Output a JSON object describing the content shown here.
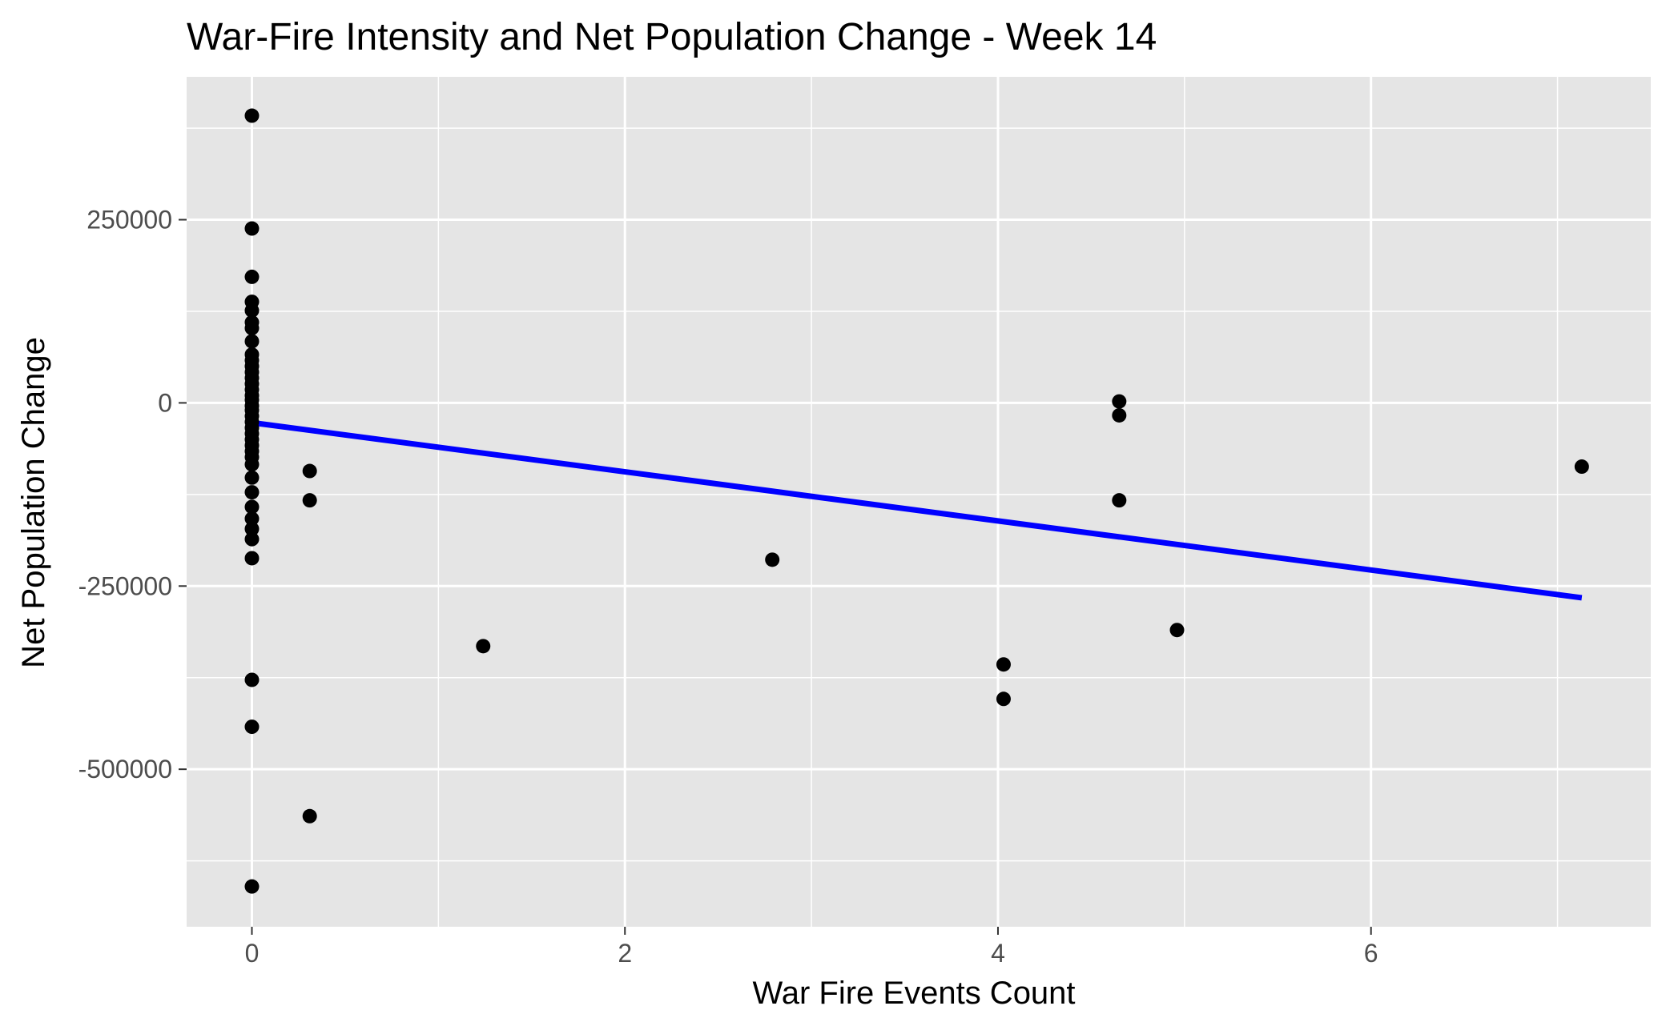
{
  "chart_data": {
    "type": "scatter",
    "title": "War-Fire Intensity and Net Population Change - Week 14",
    "xlabel": "War Fire Events Count",
    "ylabel": "Net Population Change",
    "xlim": [
      -0.35,
      7.5
    ],
    "ylim": [
      -715000,
      445000
    ],
    "x_ticks": [
      0,
      2,
      4,
      6
    ],
    "x_tick_labels": [
      "0",
      "2",
      "4",
      "6"
    ],
    "x_minor_ticks": [
      1,
      3,
      5,
      7
    ],
    "y_ticks": [
      250000,
      0,
      -250000,
      -500000
    ],
    "y_tick_labels": [
      "250000",
      "0",
      "-250000",
      "-500000"
    ],
    "y_minor_ticks": [
      375000,
      125000,
      -125000,
      -375000,
      -625000
    ],
    "grid": true,
    "point_color": "#000000",
    "line_color": "#0000ff",
    "panel_background": "#e5e5e5",
    "grid_color": "#ffffff",
    "points": [
      {
        "x": 0,
        "y": 392000
      },
      {
        "x": 0,
        "y": 238000
      },
      {
        "x": 0,
        "y": 172000
      },
      {
        "x": 0,
        "y": 138000
      },
      {
        "x": 0,
        "y": 126000
      },
      {
        "x": 0,
        "y": 110000
      },
      {
        "x": 0,
        "y": 102000
      },
      {
        "x": 0,
        "y": 84000
      },
      {
        "x": 0,
        "y": 66000
      },
      {
        "x": 0,
        "y": 58000
      },
      {
        "x": 0,
        "y": 50000
      },
      {
        "x": 0,
        "y": 42000
      },
      {
        "x": 0,
        "y": 34000
      },
      {
        "x": 0,
        "y": 26000
      },
      {
        "x": 0,
        "y": 18000
      },
      {
        "x": 0,
        "y": 10000
      },
      {
        "x": 0,
        "y": 4000
      },
      {
        "x": 0,
        "y": -4000
      },
      {
        "x": 0,
        "y": -10000
      },
      {
        "x": 0,
        "y": -18000
      },
      {
        "x": 0,
        "y": -26000
      },
      {
        "x": 0,
        "y": -34000
      },
      {
        "x": 0,
        "y": -42000
      },
      {
        "x": 0,
        "y": -50000
      },
      {
        "x": 0,
        "y": -58000
      },
      {
        "x": 0,
        "y": -66000
      },
      {
        "x": 0,
        "y": -74000
      },
      {
        "x": 0,
        "y": -84000
      },
      {
        "x": 0,
        "y": -102000
      },
      {
        "x": 0,
        "y": -122000
      },
      {
        "x": 0,
        "y": -142000
      },
      {
        "x": 0,
        "y": -158000
      },
      {
        "x": 0,
        "y": -172000
      },
      {
        "x": 0,
        "y": -186000
      },
      {
        "x": 0,
        "y": -212000
      },
      {
        "x": 0,
        "y": -378000
      },
      {
        "x": 0,
        "y": -442000
      },
      {
        "x": 0,
        "y": -660000
      },
      {
        "x": 0.31,
        "y": -93000
      },
      {
        "x": 0.31,
        "y": -133000
      },
      {
        "x": 0.31,
        "y": -564000
      },
      {
        "x": 1.24,
        "y": -332000
      },
      {
        "x": 2.79,
        "y": -214000
      },
      {
        "x": 4.03,
        "y": -357000
      },
      {
        "x": 4.03,
        "y": -404000
      },
      {
        "x": 4.65,
        "y": 2000
      },
      {
        "x": 4.65,
        "y": -17000
      },
      {
        "x": 4.65,
        "y": -133000
      },
      {
        "x": 4.96,
        "y": -310000
      },
      {
        "x": 7.13,
        "y": -87000
      }
    ],
    "trend_line": {
      "x": [
        0,
        7.13
      ],
      "y": [
        -27000,
        -266000
      ]
    }
  }
}
